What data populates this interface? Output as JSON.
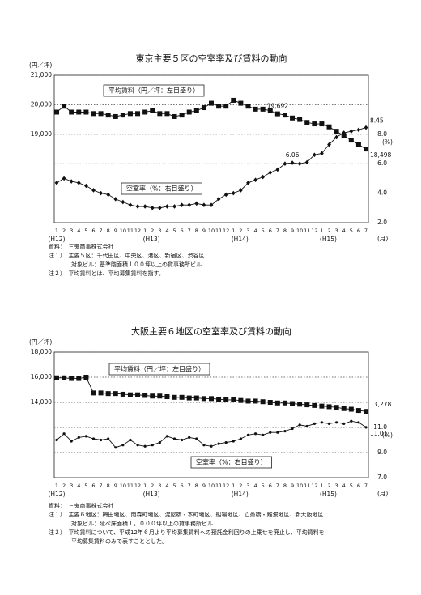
{
  "chart_data": [
    {
      "type": "line",
      "title": "東京主要５区の空室率及び賃料の動向",
      "y_unit": "(円／坪)",
      "y2_unit": "(%)",
      "x_unit": "(月)",
      "categories": [
        "1",
        "2",
        "3",
        "4",
        "5",
        "6",
        "7",
        "8",
        "9",
        "10",
        "11",
        "12",
        "1",
        "2",
        "3",
        "4",
        "5",
        "6",
        "7",
        "8",
        "9",
        "10",
        "11",
        "12",
        "1",
        "2",
        "3",
        "4",
        "5",
        "6",
        "7",
        "8",
        "9",
        "10",
        "11",
        "12",
        "1",
        "2",
        "3",
        "4",
        "5",
        "6",
        "7"
      ],
      "year_labels": [
        "(H12)",
        "(H13)",
        "(H14)",
        "(H15)"
      ],
      "ylim": [
        16000,
        21000
      ],
      "yticks": [
        {
          "value": 19000,
          "label": "19,000"
        },
        {
          "value": 20000,
          "label": "20,000"
        },
        {
          "value": 21000,
          "label": "21,000"
        }
      ],
      "y2lim": [
        2,
        12
      ],
      "y2ticks": [
        {
          "value": 2,
          "label": "2.0"
        },
        {
          "value": 4,
          "label": "4.0"
        },
        {
          "value": 6,
          "label": "6.0"
        },
        {
          "value": 8,
          "label": "8.0"
        }
      ],
      "grid": true,
      "series": [
        {
          "name": "平均賃料（円／坪：左目盛り）",
          "color": "#111111",
          "marker": "square",
          "axis": "y",
          "values": [
            19750,
            19950,
            19750,
            19750,
            19750,
            19700,
            19700,
            19650,
            19600,
            19650,
            19700,
            19700,
            19750,
            19800,
            19700,
            19700,
            19600,
            19650,
            19750,
            19800,
            19900,
            20050,
            19950,
            19950,
            20150,
            20050,
            19950,
            19850,
            19850,
            19800,
            19692,
            19650,
            19550,
            19500,
            19400,
            19350,
            19350,
            19250,
            19100,
            18950,
            18800,
            18650,
            18498
          ],
          "value_labels": [
            null,
            null,
            null,
            null,
            null,
            null,
            null,
            null,
            null,
            null,
            null,
            null,
            null,
            null,
            null,
            null,
            null,
            null,
            null,
            null,
            null,
            null,
            null,
            null,
            null,
            null,
            null,
            null,
            null,
            null,
            "19,692",
            null,
            null,
            null,
            null,
            null,
            null,
            null,
            null,
            null,
            null,
            null,
            "18,498"
          ]
        },
        {
          "name": "空室率（%：右目盛り）",
          "color": "#111111",
          "marker": "diamond",
          "axis": "y2",
          "values": [
            4.7,
            5.0,
            4.8,
            4.7,
            4.5,
            4.2,
            4.0,
            3.9,
            3.6,
            3.4,
            3.2,
            3.1,
            3.1,
            3.0,
            3.0,
            3.1,
            3.1,
            3.2,
            3.2,
            3.3,
            3.2,
            3.2,
            3.6,
            3.9,
            4.0,
            4.2,
            4.7,
            4.9,
            5.1,
            5.4,
            5.6,
            6.0,
            6.06,
            6.0,
            6.1,
            6.6,
            6.7,
            7.3,
            7.8,
            8.1,
            8.2,
            8.3,
            8.45
          ],
          "value_labels": [
            null,
            null,
            null,
            null,
            null,
            null,
            null,
            null,
            null,
            null,
            null,
            null,
            null,
            null,
            null,
            null,
            null,
            null,
            null,
            null,
            null,
            null,
            null,
            null,
            null,
            null,
            null,
            null,
            null,
            null,
            null,
            null,
            "6.06",
            null,
            null,
            null,
            null,
            null,
            null,
            null,
            null,
            null,
            "8.45"
          ]
        }
      ],
      "notes": [
        "資料：　三鬼商事株式会社",
        "注１）　主要５区：千代田区、中央区、港区、新宿区、渋谷区",
        "　　　　対象ビル：基準階面積１００坪以上の貸事務所ビル",
        "注２）　平均賃料とは、平均募集賃料を指す。"
      ]
    },
    {
      "type": "line",
      "title": "大阪主要６地区の空室率及び賃料の動向",
      "y_unit": "(円／坪)",
      "y2_unit": "(%)",
      "x_unit": "(月)",
      "categories": [
        "1",
        "2",
        "3",
        "4",
        "5",
        "6",
        "7",
        "8",
        "9",
        "10",
        "11",
        "12",
        "1",
        "2",
        "3",
        "4",
        "5",
        "6",
        "7",
        "8",
        "9",
        "10",
        "11",
        "12",
        "1",
        "2",
        "3",
        "4",
        "5",
        "6",
        "7",
        "8",
        "9",
        "10",
        "11",
        "12",
        "1",
        "2",
        "3",
        "4",
        "5",
        "6",
        "7"
      ],
      "year_labels": [
        "(H12)",
        "(H13)",
        "(H14)",
        "(H15)"
      ],
      "ylim": [
        8000,
        18000
      ],
      "yticks": [
        {
          "value": 14000,
          "label": "14,000"
        },
        {
          "value": 16000,
          "label": "16,000"
        },
        {
          "value": 18000,
          "label": "18,000"
        }
      ],
      "y2lim": [
        7,
        17
      ],
      "y2ticks": [
        {
          "value": 7,
          "label": "7.0"
        },
        {
          "value": 9,
          "label": "9.0"
        },
        {
          "value": 11,
          "label": "11.0"
        }
      ],
      "grid": true,
      "series": [
        {
          "name": "平均賃料（円／坪：左目盛り）",
          "color": "#111111",
          "marker": "square",
          "axis": "y",
          "values": [
            15950,
            15950,
            15900,
            15900,
            16000,
            14750,
            14750,
            14700,
            14700,
            14650,
            14600,
            14600,
            14550,
            14500,
            14500,
            14450,
            14400,
            14400,
            14350,
            14350,
            14300,
            14300,
            14250,
            14200,
            14200,
            14150,
            14100,
            14100,
            14050,
            14000,
            13950,
            13950,
            13900,
            13850,
            13800,
            13750,
            13700,
            13650,
            13600,
            13500,
            13450,
            13350,
            13278
          ],
          "value_labels": [
            null,
            null,
            null,
            null,
            null,
            null,
            null,
            null,
            null,
            null,
            null,
            null,
            null,
            null,
            null,
            null,
            null,
            null,
            null,
            null,
            null,
            null,
            null,
            null,
            null,
            null,
            null,
            null,
            null,
            null,
            null,
            null,
            null,
            null,
            null,
            null,
            null,
            null,
            null,
            null,
            null,
            null,
            "13,278"
          ]
        },
        {
          "name": "空室率（%：右目盛り）",
          "color": "#111111",
          "marker": "circle",
          "axis": "y2",
          "values": [
            10.0,
            10.5,
            9.9,
            10.2,
            10.3,
            10.1,
            10.0,
            10.1,
            9.4,
            9.6,
            10.0,
            9.6,
            9.5,
            9.6,
            9.8,
            10.3,
            10.1,
            10.0,
            10.2,
            10.1,
            9.6,
            9.5,
            9.7,
            9.8,
            9.9,
            10.1,
            10.4,
            10.5,
            10.4,
            10.6,
            10.6,
            10.7,
            10.9,
            11.2,
            11.1,
            11.3,
            11.4,
            11.3,
            11.4,
            11.3,
            11.5,
            11.4,
            11.01
          ],
          "value_labels": [
            null,
            null,
            null,
            null,
            null,
            null,
            null,
            null,
            null,
            null,
            null,
            null,
            null,
            null,
            null,
            null,
            null,
            null,
            null,
            null,
            null,
            null,
            null,
            null,
            null,
            null,
            null,
            null,
            null,
            null,
            null,
            null,
            null,
            null,
            null,
            null,
            null,
            null,
            null,
            null,
            null,
            null,
            "11.01"
          ]
        }
      ],
      "notes": [
        "資料：　三鬼商事株式会社",
        "注１）　主要６地区：梅田地区、南森町地区、淀屋橋・本町地区、船場地区、心斎橋・難波地区、新大阪地区",
        "　　　　対象ビル：延べ床面積１，０００坪以上の貸事務所ビル",
        "注２）　平均賃料について、平成12年６月より平均募集賃料への預託金利回りの上乗せを廃止し、平均賃料を",
        "　　　　平均募集賃料のみで表すこととした。"
      ]
    }
  ]
}
